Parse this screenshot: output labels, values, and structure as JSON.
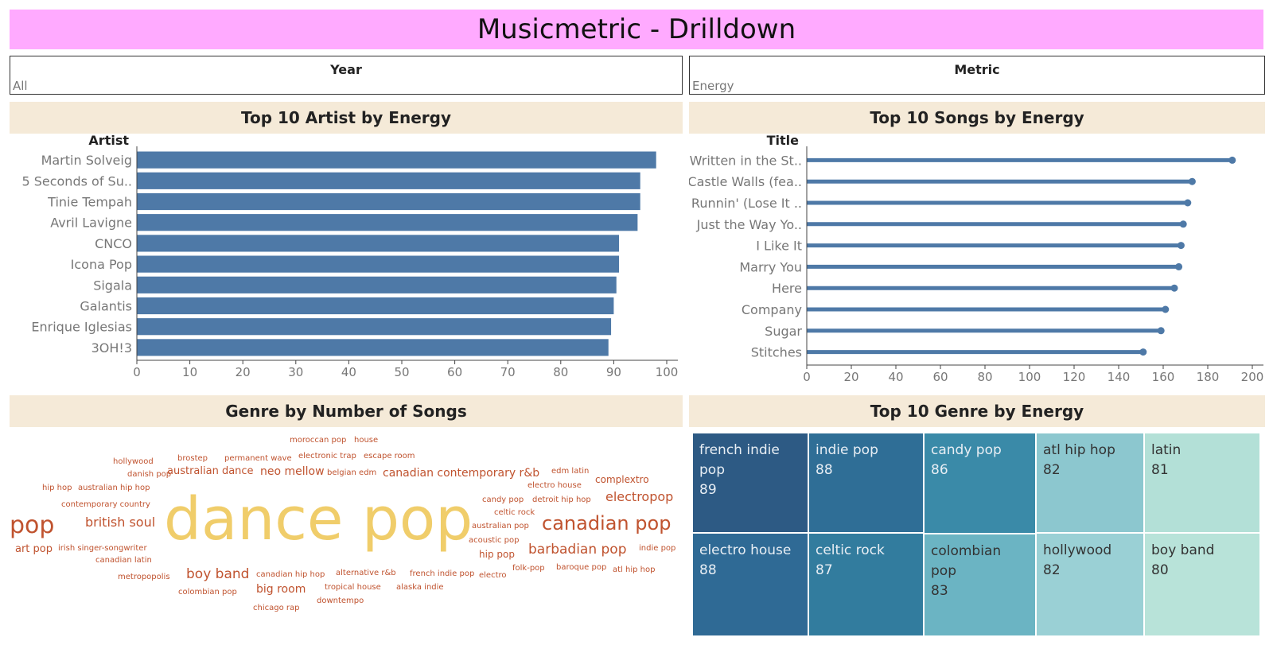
{
  "page": {
    "title": "Musicmetric - Drilldown"
  },
  "filters": {
    "year": {
      "label": "Year",
      "value": "All"
    },
    "metric": {
      "label": "Metric",
      "value": "Energy"
    }
  },
  "colors": {
    "bar": "#4e79a7",
    "word_dark": "#c0532f",
    "word_light": "#f0cd6a"
  },
  "panels": {
    "artists_title": "Top 10 Artist by Energy",
    "songs_title": "Top 10 Songs by Energy",
    "genres_cloud_title": "Genre by Number of Songs",
    "genres_top_title": "Top 10 Genre by Energy"
  },
  "chart_data": [
    {
      "id": "artists",
      "type": "bar",
      "title": "Top 10 Artist by Energy",
      "ylabel": "Artist",
      "categories": [
        "Martin Solveig",
        "5 Seconds of Su..",
        "Tinie Tempah",
        "Avril Lavigne",
        "CNCO",
        "Icona Pop",
        "Sigala",
        "Galantis",
        "Enrique Iglesias",
        "3OH!3"
      ],
      "values": [
        98,
        95,
        95,
        94.5,
        91,
        91,
        90.5,
        90,
        89.5,
        89
      ],
      "xlim": [
        0,
        100
      ],
      "xticks": [
        0,
        10,
        20,
        30,
        40,
        50,
        60,
        70,
        80,
        90,
        100
      ]
    },
    {
      "id": "songs",
      "type": "bar",
      "style": "lollipop",
      "title": "Top 10 Songs by Energy",
      "ylabel": "Title",
      "categories": [
        "Written in the St..",
        "Castle Walls (fea..",
        "Runnin' (Lose It ..",
        "Just the Way Yo..",
        "I Like It",
        "Marry You",
        "Here",
        "Company",
        "Sugar",
        "Stitches"
      ],
      "values": [
        191,
        173,
        171,
        169,
        168,
        167,
        165,
        161,
        159,
        151
      ],
      "xlim": [
        0,
        200
      ],
      "xticks": [
        0,
        20,
        40,
        60,
        80,
        100,
        120,
        140,
        160,
        180,
        200
      ]
    },
    {
      "id": "genre_cloud",
      "type": "wordcloud",
      "title": "Genre by Number of Songs",
      "words": [
        {
          "text": "dance pop",
          "size": 74,
          "color": "light"
        },
        {
          "text": "pop",
          "size": 30,
          "color": "dark"
        },
        {
          "text": "canadian pop",
          "size": 24,
          "color": "dark"
        },
        {
          "text": "barbadian pop",
          "size": 17,
          "color": "dark"
        },
        {
          "text": "british soul",
          "size": 16,
          "color": "dark"
        },
        {
          "text": "electropop",
          "size": 16,
          "color": "dark"
        },
        {
          "text": "boy band",
          "size": 17,
          "color": "dark"
        },
        {
          "text": "big room",
          "size": 14,
          "color": "dark"
        },
        {
          "text": "canadian contemporary r&b",
          "size": 14,
          "color": "dark"
        },
        {
          "text": "neo mellow",
          "size": 14,
          "color": "dark"
        },
        {
          "text": "australian dance",
          "size": 13,
          "color": "dark"
        },
        {
          "text": "art pop",
          "size": 13,
          "color": "dark"
        },
        {
          "text": "complextro",
          "size": 12,
          "color": "dark"
        },
        {
          "text": "hip pop",
          "size": 12,
          "color": "dark"
        },
        {
          "text": "moroccan pop",
          "size": 10,
          "color": "dark"
        },
        {
          "text": "house",
          "size": 10,
          "color": "dark"
        },
        {
          "text": "hollywood",
          "size": 10,
          "color": "dark"
        },
        {
          "text": "brostep",
          "size": 10,
          "color": "dark"
        },
        {
          "text": "permanent wave",
          "size": 10,
          "color": "dark"
        },
        {
          "text": "electronic trap",
          "size": 10,
          "color": "dark"
        },
        {
          "text": "escape room",
          "size": 10,
          "color": "dark"
        },
        {
          "text": "danish pop",
          "size": 10,
          "color": "dark"
        },
        {
          "text": "belgian edm",
          "size": 10,
          "color": "dark"
        },
        {
          "text": "edm latin",
          "size": 10,
          "color": "dark"
        },
        {
          "text": "hip hop",
          "size": 10,
          "color": "dark"
        },
        {
          "text": "australian hip hop",
          "size": 10,
          "color": "dark"
        },
        {
          "text": "electro house",
          "size": 10,
          "color": "dark"
        },
        {
          "text": "candy pop",
          "size": 10,
          "color": "dark"
        },
        {
          "text": "detroit hip hop",
          "size": 10,
          "color": "dark"
        },
        {
          "text": "contemporary country",
          "size": 10,
          "color": "dark"
        },
        {
          "text": "celtic rock",
          "size": 10,
          "color": "dark"
        },
        {
          "text": "australian pop",
          "size": 10,
          "color": "dark"
        },
        {
          "text": "acoustic pop",
          "size": 10,
          "color": "dark"
        },
        {
          "text": "indie pop",
          "size": 10,
          "color": "dark"
        },
        {
          "text": "irish singer-songwriter",
          "size": 10,
          "color": "dark"
        },
        {
          "text": "canadian latin",
          "size": 10,
          "color": "dark"
        },
        {
          "text": "metropopolis",
          "size": 10,
          "color": "dark"
        },
        {
          "text": "canadian hip hop",
          "size": 10,
          "color": "dark"
        },
        {
          "text": "alternative r&b",
          "size": 10,
          "color": "dark"
        },
        {
          "text": "french indie pop",
          "size": 10,
          "color": "dark"
        },
        {
          "text": "electro",
          "size": 10,
          "color": "dark"
        },
        {
          "text": "folk-pop",
          "size": 10,
          "color": "dark"
        },
        {
          "text": "baroque pop",
          "size": 10,
          "color": "dark"
        },
        {
          "text": "atl hip hop",
          "size": 10,
          "color": "dark"
        },
        {
          "text": "colombian pop",
          "size": 10,
          "color": "dark"
        },
        {
          "text": "tropical house",
          "size": 10,
          "color": "dark"
        },
        {
          "text": "alaska indie",
          "size": 10,
          "color": "dark"
        },
        {
          "text": "downtempo",
          "size": 10,
          "color": "dark"
        },
        {
          "text": "chicago rap",
          "size": 10,
          "color": "dark"
        }
      ]
    },
    {
      "id": "genre_treemap",
      "type": "treemap",
      "title": "Top 10 Genre by Energy",
      "cells": [
        {
          "name": "french indie pop",
          "value": 89
        },
        {
          "name": "electro house",
          "value": 88
        },
        {
          "name": "indie pop",
          "value": 88
        },
        {
          "name": "celtic rock",
          "value": 87
        },
        {
          "name": "candy pop",
          "value": 86
        },
        {
          "name": "colombian pop",
          "value": 83
        },
        {
          "name": "atl hip hop",
          "value": 82
        },
        {
          "name": "hollywood",
          "value": 82
        },
        {
          "name": "latin",
          "value": 81
        },
        {
          "name": "boy band",
          "value": 80
        }
      ]
    }
  ]
}
